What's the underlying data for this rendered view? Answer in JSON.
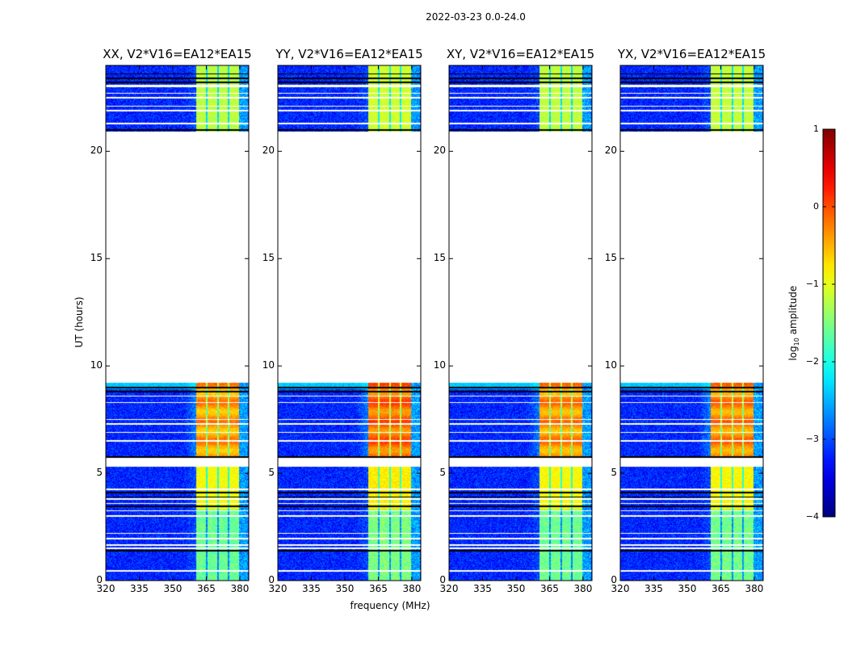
{
  "chart_data": {
    "type": "heatmap",
    "suptitle": "2022-03-23 0.0-24.0",
    "xlabel": "frequency (MHz)",
    "ylabel": "UT (hours)",
    "xlim": [
      320,
      384
    ],
    "ylim": [
      0,
      24
    ],
    "xticks": [
      320,
      335,
      350,
      365,
      380
    ],
    "xtick_labels": [
      "320",
      "335",
      "350",
      "365",
      "380"
    ],
    "yticks": [
      0,
      5,
      10,
      15,
      20
    ],
    "ytick_labels": [
      "0",
      "5",
      "10",
      "15",
      "20"
    ],
    "panels": [
      {
        "title": "XX, V2*V16=EA12*EA15",
        "band_boost": 0.0
      },
      {
        "title": "YY, V2*V16=EA12*EA15",
        "band_boost": 0.25
      },
      {
        "title": "XY, V2*V16=EA12*EA15",
        "band_boost": 0.05
      },
      {
        "title": "YX, V2*V16=EA12*EA15",
        "band_boost": 0.1
      }
    ],
    "data_time_ranges": [
      [
        0,
        5.3
      ],
      [
        5.7,
        9.2
      ],
      [
        20.9,
        23.0
      ],
      [
        23.1,
        24.0
      ]
    ],
    "flagged_times_white": [
      0.45,
      1.5,
      1.65,
      1.95,
      2.2,
      3.0,
      3.25,
      3.6,
      3.8,
      4.25,
      6.5,
      6.9,
      7.3,
      7.5,
      8.3,
      8.6,
      21.3,
      21.9,
      22.1,
      22.5,
      22.7
    ],
    "flagged_times_black": [
      1.4,
      3.45,
      3.9,
      4.1,
      5.75,
      8.8,
      9.0,
      21.0,
      23.2,
      23.4,
      23.6
    ],
    "rfi_band_mhz": [
      360.5,
      379.5
    ],
    "rfi_channel_edges_mhz": [
      365.2,
      370.3,
      375.0
    ],
    "levels_log10": {
      "background": -3.2,
      "band_0_to_3.3h": -1.6,
      "band_3.3_to_5.3h": -0.9,
      "band_5.7_to_9.2h": -0.4,
      "band_20.9_to_24h": -1.2
    },
    "colorbar": {
      "label_main": "log",
      "label_sub": "10",
      "label_rest": " amplitude",
      "range": [
        -4,
        1
      ],
      "ticks": [
        1,
        0,
        -1,
        -2,
        -3,
        -4
      ],
      "tick_labels": [
        "1",
        "0",
        "−1",
        "−2",
        "−3",
        "−4"
      ],
      "colormap": "jet"
    }
  }
}
